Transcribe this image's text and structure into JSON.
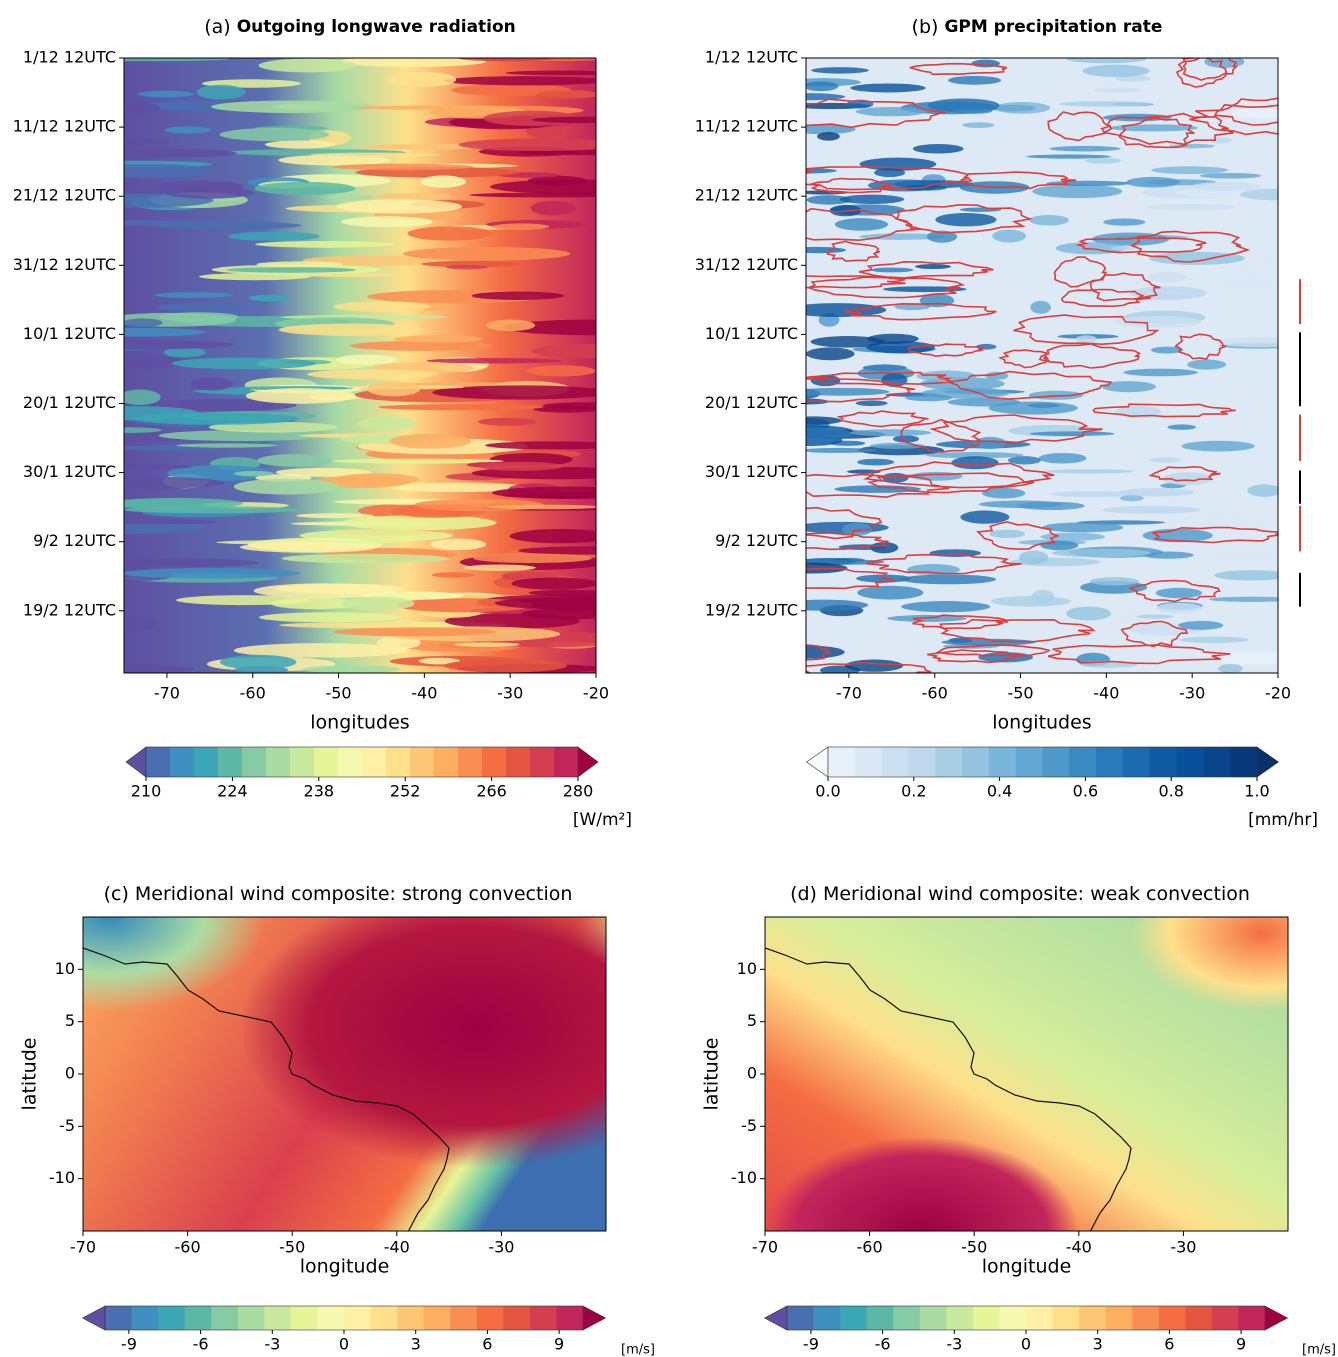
{
  "chart_data": [
    {
      "type": "heatmap",
      "panel_label": "(a)",
      "title": "Outgoing longwave radiation",
      "xlabel": "longitudes",
      "xlim": [
        -75,
        -20
      ],
      "xticks": [
        -70,
        -60,
        -50,
        -40,
        -30,
        -20
      ],
      "ylim": [
        0,
        89
      ],
      "y_inverted": true,
      "yticks": [
        {
          "value": 0,
          "label": "1/12 12UTC"
        },
        {
          "value": 10,
          "label": "11/12 12UTC"
        },
        {
          "value": 20,
          "label": "21/12 12UTC"
        },
        {
          "value": 30,
          "label": "31/12 12UTC"
        },
        {
          "value": 40,
          "label": "10/1 12UTC"
        },
        {
          "value": 50,
          "label": "20/1 12UTC"
        },
        {
          "value": 60,
          "label": "30/1 12UTC"
        },
        {
          "value": 70,
          "label": "9/2 12UTC"
        },
        {
          "value": 80,
          "label": "19/2 12UTC"
        }
      ],
      "cmap": "Spectral_r",
      "colorbar": {
        "lim": [
          210,
          280
        ],
        "ticks": [
          210,
          224,
          238,
          252,
          266,
          280
        ],
        "label": "[W/m²]"
      }
    },
    {
      "type": "heatmap",
      "panel_label": "(b)",
      "title": "GPM precipitation rate",
      "xlabel": "longitudes",
      "xlim": [
        -75,
        -20
      ],
      "xticks": [
        -70,
        -60,
        -50,
        -40,
        -30,
        -20
      ],
      "ylim": [
        0,
        89
      ],
      "y_inverted": true,
      "yticks": [
        {
          "value": 0,
          "label": "1/12 12UTC"
        },
        {
          "value": 10,
          "label": "11/12 12UTC"
        },
        {
          "value": 20,
          "label": "21/12 12UTC"
        },
        {
          "value": 30,
          "label": "31/12 12UTC"
        },
        {
          "value": 40,
          "label": "10/1 12UTC"
        },
        {
          "value": 50,
          "label": "20/1 12UTC"
        },
        {
          "value": 60,
          "label": "30/1 12UTC"
        },
        {
          "value": 70,
          "label": "9/2 12UTC"
        },
        {
          "value": 80,
          "label": "19/2 12UTC"
        }
      ],
      "cmap": "Blues",
      "colorbar": {
        "lim": [
          0,
          1
        ],
        "ticks": [
          {
            "value": 0,
            "label": "0.0"
          },
          {
            "value": 0.2,
            "label": "0.2"
          },
          {
            "value": 0.4,
            "label": "0.4"
          },
          {
            "value": 0.6,
            "label": "0.6"
          },
          {
            "value": 0.8,
            "label": "0.8"
          },
          {
            "value": 1,
            "label": "1.0"
          }
        ],
        "label": "[mm/hr]"
      },
      "markers": [
        {
          "color": "#e03c3c",
          "range": [
            32,
            38.5
          ]
        },
        {
          "color": "#000000",
          "range": [
            39.7,
            50.4
          ]
        },
        {
          "color": "#e03c3c",
          "range": [
            51.6,
            58.3
          ]
        },
        {
          "color": "#000000",
          "range": [
            59.7,
            64.5
          ]
        },
        {
          "color": "#e03c3c",
          "range": [
            64.8,
            71.4
          ]
        },
        {
          "color": "#000000",
          "range": [
            74.5,
            79.4
          ]
        }
      ]
    },
    {
      "type": "map",
      "panel_label": "(c)",
      "title": "Meridional wind composite: strong convection",
      "xlabel": "longitude",
      "ylabel": "latitude",
      "xlim": [
        -70,
        -20
      ],
      "xticks": [
        -70,
        -60,
        -50,
        -40,
        -30
      ],
      "ylim": [
        -15,
        15
      ],
      "yticks": [
        -10,
        -5,
        0,
        5,
        10
      ],
      "cmap": "Spectral_r",
      "colorbar": {
        "lim": [
          -10,
          10
        ],
        "ticks": [
          -9,
          -6,
          -3,
          0,
          3,
          6,
          9
        ],
        "label": "[m/s]"
      }
    },
    {
      "type": "map",
      "panel_label": "(d)",
      "title": "Meridional wind composite: weak convection",
      "xlabel": "longitude",
      "ylabel": "latitude",
      "xlim": [
        -70,
        -20
      ],
      "xticks": [
        -70,
        -60,
        -50,
        -40,
        -30
      ],
      "ylim": [
        -15,
        15
      ],
      "yticks": [
        -10,
        -5,
        0,
        5,
        10
      ],
      "cmap": "Spectral_r",
      "colorbar": {
        "lim": [
          -10,
          10
        ],
        "ticks": [
          -9,
          -6,
          -3,
          0,
          3,
          6,
          9
        ],
        "label": "[m/s]"
      }
    }
  ]
}
